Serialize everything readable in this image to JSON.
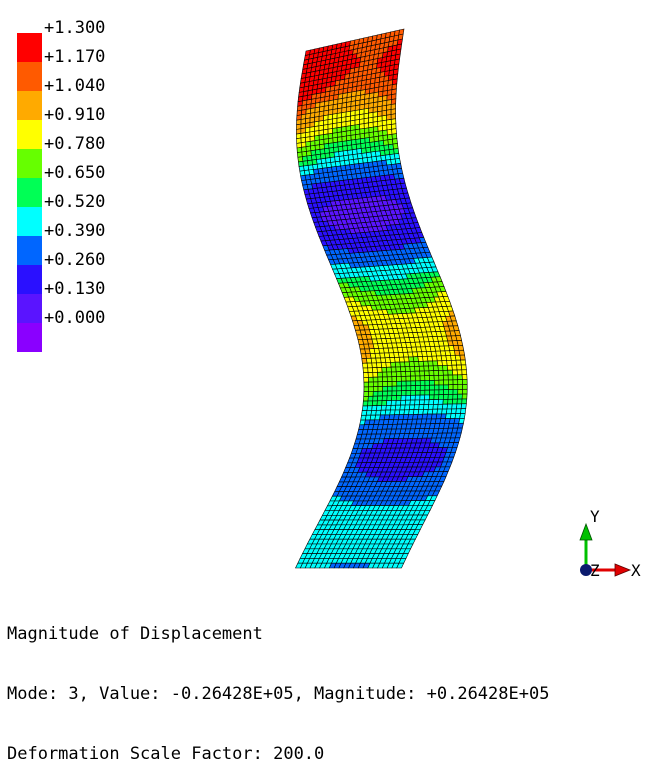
{
  "legend": {
    "labels": [
      "+1.300",
      "+1.170",
      "+1.040",
      "+0.910",
      "+0.780",
      "+0.650",
      "+0.520",
      "+0.390",
      "+0.260",
      "+0.130",
      "+0.000"
    ],
    "colors": [
      "#ff0000",
      "#ff5a00",
      "#ffaa00",
      "#ffff00",
      "#66ff00",
      "#00ff55",
      "#00ffff",
      "#0066ff",
      "#2a10ff",
      "#5a14ff",
      "#8a00ff"
    ]
  },
  "triad": {
    "y_label": "Y",
    "x_label": "X",
    "z_label": "Z",
    "y_color": "#00c000",
    "x_color": "#e00000",
    "z_color": "#0a1a6e"
  },
  "info": {
    "line1": "Magnitude of Displacement",
    "line2": "Mode: 3, Value: -0.26428E+05, Magnitude: +0.26428E+05",
    "line3": "Deformation Scale Factor: 200.0"
  }
}
